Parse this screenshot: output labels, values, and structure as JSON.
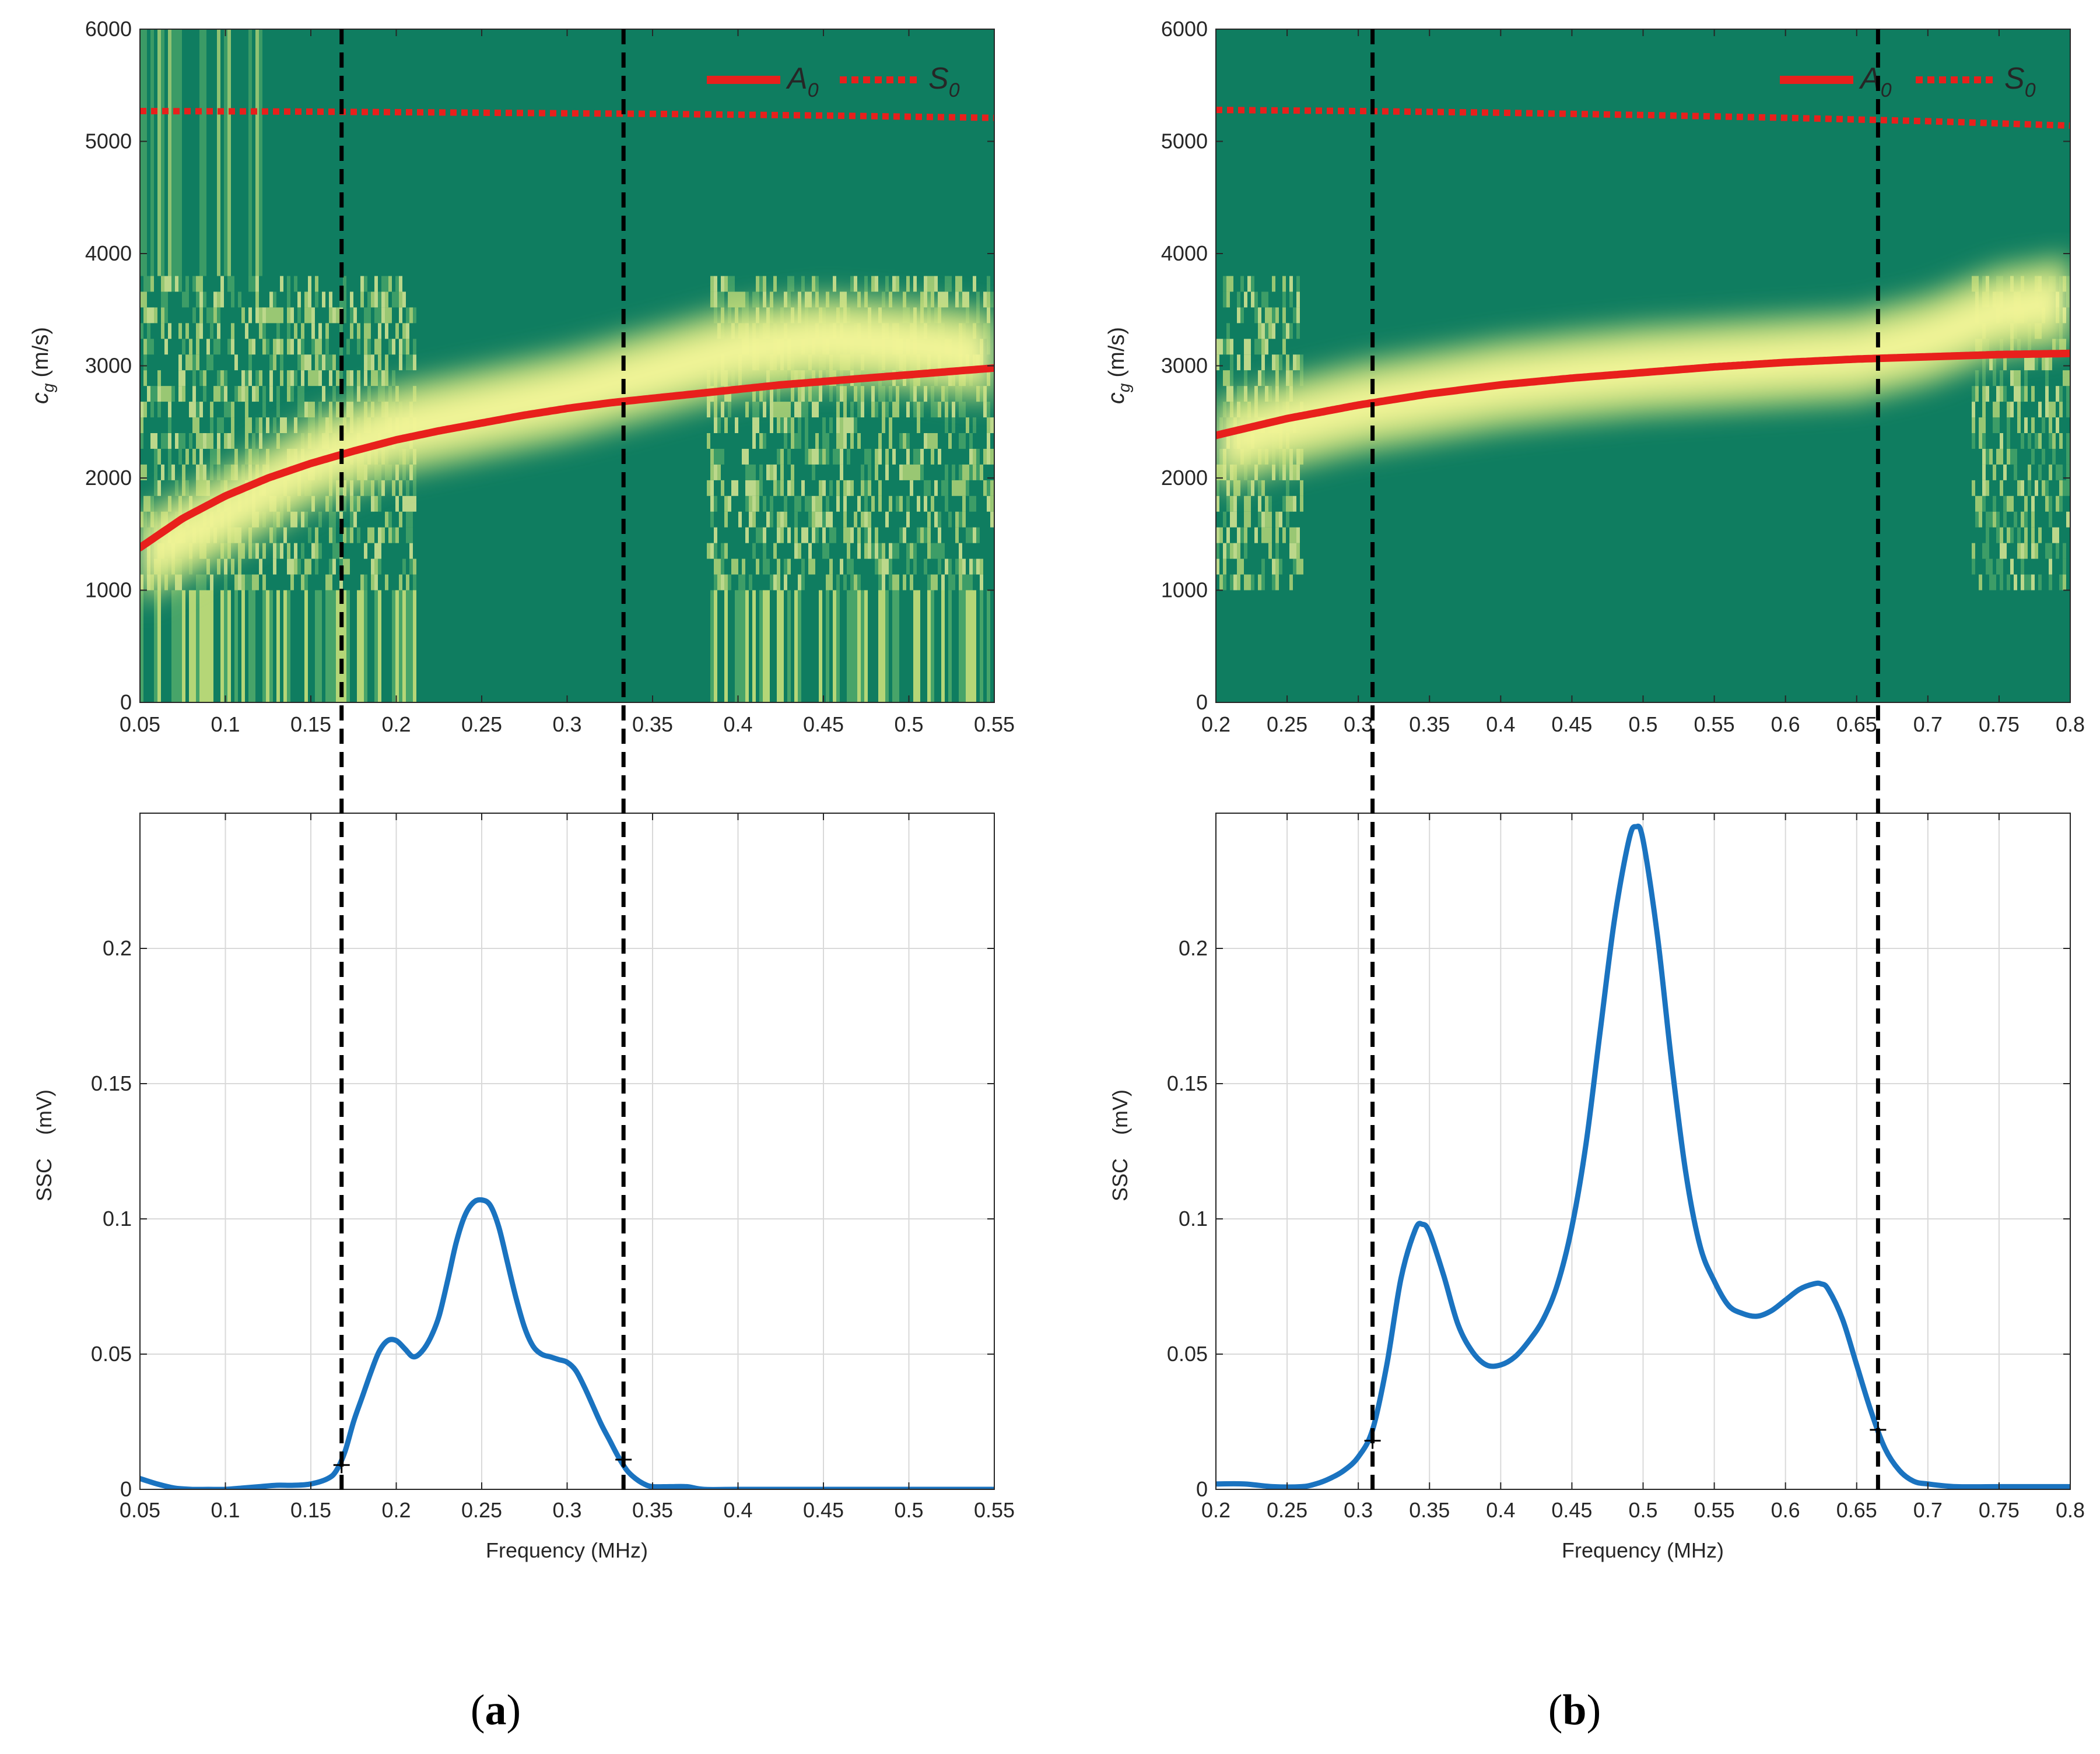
{
  "colors": {
    "heat_dark": "#0f7d60",
    "heat_mid": "#4ea86a",
    "heat_light": "#c8e07a",
    "heat_peak": "#f7f79a",
    "a0_line": "#e8201c",
    "spectrum_line": "#1a73c0",
    "guide_line": "#000000",
    "grid": "#d9d9d9"
  },
  "panels": [
    {
      "id": "a",
      "caption": "a",
      "legend": {
        "a0": "A",
        "a0_sub": "0",
        "s0": "S",
        "s0_sub": "0"
      },
      "cutoffs": [
        0.168,
        0.333
      ],
      "top": {
        "xlim": [
          0.05,
          0.55
        ],
        "ylim": [
          0,
          6000
        ],
        "xticks": [
          "0.05",
          "0.1",
          "0.15",
          "0.2",
          "0.25",
          "0.3",
          "0.35",
          "0.4",
          "0.45",
          "0.5",
          "0.55"
        ],
        "yticks": [
          "0",
          "1000",
          "2000",
          "3000",
          "4000",
          "5000",
          "6000"
        ],
        "ylabel": "c",
        "ylabel_sub": "g",
        "ylabel_units": "(m/s)"
      },
      "bottom": {
        "xlim": [
          0.05,
          0.55
        ],
        "ylim": [
          0,
          0.25
        ],
        "xticks": [
          "0.05",
          "0.1",
          "0.15",
          "0.2",
          "0.25",
          "0.3",
          "0.35",
          "0.4",
          "0.45",
          "0.5",
          "0.55"
        ],
        "yticks": [
          "0",
          "0.05",
          "0.1",
          "0.15",
          "0.2"
        ],
        "xlabel": "Frequency (MHz)",
        "ylabel": "SSC    (mV)"
      }
    },
    {
      "id": "b",
      "caption": "b",
      "legend": {
        "a0": "A",
        "a0_sub": "0",
        "s0": "S",
        "s0_sub": "0"
      },
      "cutoffs": [
        0.31,
        0.665
      ],
      "top": {
        "xlim": [
          0.2,
          0.8
        ],
        "ylim": [
          0,
          6000
        ],
        "xticks": [
          "0.2",
          "0.25",
          "0.3",
          "0.35",
          "0.4",
          "0.45",
          "0.5",
          "0.55",
          "0.6",
          "0.65",
          "0.7",
          "0.75",
          "0.8"
        ],
        "yticks": [
          "0",
          "1000",
          "2000",
          "3000",
          "4000",
          "5000",
          "6000"
        ],
        "ylabel": "c",
        "ylabel_sub": "g",
        "ylabel_units": "(m/s)"
      },
      "bottom": {
        "xlim": [
          0.2,
          0.8
        ],
        "ylim": [
          0,
          0.25
        ],
        "xticks": [
          "0.2",
          "0.25",
          "0.3",
          "0.35",
          "0.4",
          "0.45",
          "0.5",
          "0.55",
          "0.6",
          "0.65",
          "0.7",
          "0.75",
          "0.8"
        ],
        "yticks": [
          "0",
          "0.05",
          "0.1",
          "0.15",
          "0.2"
        ],
        "xlabel": "Frequency (MHz)",
        "ylabel": "SSC    (mV)"
      }
    }
  ],
  "chart_data": [
    {
      "type": "heatmap",
      "panel": "a-top",
      "title": "",
      "xlabel": "",
      "ylabel": "c_g (m/s)",
      "xlim": [
        0.05,
        0.55
      ],
      "ylim": [
        0,
        6000
      ],
      "grid": false,
      "legend": "top-right",
      "series": [
        {
          "name": "A0",
          "style": "solid",
          "x": [
            0.05,
            0.075,
            0.1,
            0.125,
            0.15,
            0.175,
            0.2,
            0.225,
            0.25,
            0.275,
            0.3,
            0.325,
            0.35,
            0.375,
            0.4,
            0.425,
            0.45,
            0.475,
            0.5,
            0.525,
            0.55
          ],
          "y": [
            1380,
            1640,
            1840,
            2000,
            2130,
            2240,
            2340,
            2420,
            2490,
            2560,
            2620,
            2670,
            2710,
            2750,
            2790,
            2830,
            2860,
            2890,
            2920,
            2950,
            2980
          ]
        },
        {
          "name": "S0",
          "style": "dotted",
          "x": [
            0.05,
            0.15,
            0.25,
            0.35,
            0.45,
            0.55
          ],
          "y": [
            5270,
            5265,
            5255,
            5245,
            5230,
            5210
          ]
        }
      ],
      "energy_band": {
        "x": [
          0.05,
          0.1,
          0.15,
          0.2,
          0.25,
          0.3,
          0.35,
          0.4,
          0.45,
          0.5,
          0.55
        ],
        "center": [
          1300,
          1700,
          2150,
          2450,
          2600,
          2750,
          2950,
          3150,
          3250,
          3200,
          3100
        ]
      }
    },
    {
      "type": "line",
      "panel": "a-bottom",
      "title": "",
      "xlabel": "Frequency (MHz)",
      "ylabel": "SSC (mV)",
      "xlim": [
        0.05,
        0.55
      ],
      "ylim": [
        0,
        0.25
      ],
      "grid": true,
      "series": [
        {
          "name": "SSC",
          "x": [
            0.05,
            0.06,
            0.07,
            0.08,
            0.09,
            0.1,
            0.11,
            0.12,
            0.13,
            0.14,
            0.15,
            0.16,
            0.165,
            0.17,
            0.175,
            0.18,
            0.185,
            0.19,
            0.195,
            0.2,
            0.205,
            0.21,
            0.215,
            0.22,
            0.225,
            0.23,
            0.235,
            0.24,
            0.245,
            0.25,
            0.255,
            0.26,
            0.265,
            0.27,
            0.275,
            0.28,
            0.285,
            0.29,
            0.295,
            0.3,
            0.305,
            0.31,
            0.315,
            0.32,
            0.325,
            0.33,
            0.335,
            0.34,
            0.345,
            0.35,
            0.36,
            0.37,
            0.38,
            0.4,
            0.45,
            0.5,
            0.55
          ],
          "y": [
            0.004,
            0.002,
            0.0005,
            0.0,
            0.0,
            0.0,
            0.0005,
            0.001,
            0.0015,
            0.0015,
            0.002,
            0.004,
            0.007,
            0.014,
            0.025,
            0.034,
            0.043,
            0.051,
            0.055,
            0.055,
            0.052,
            0.049,
            0.051,
            0.056,
            0.064,
            0.077,
            0.091,
            0.101,
            0.106,
            0.107,
            0.105,
            0.097,
            0.084,
            0.071,
            0.06,
            0.053,
            0.05,
            0.049,
            0.048,
            0.047,
            0.044,
            0.038,
            0.031,
            0.024,
            0.018,
            0.012,
            0.007,
            0.004,
            0.002,
            0.001,
            0.001,
            0.001,
            0.0,
            0.0,
            0.0,
            0.0,
            0.0
          ]
        }
      ],
      "markers": [
        {
          "x": 0.168,
          "y": 0.009
        },
        {
          "x": 0.333,
          "y": 0.011
        }
      ]
    },
    {
      "type": "heatmap",
      "panel": "b-top",
      "title": "",
      "xlabel": "",
      "ylabel": "c_g (m/s)",
      "xlim": [
        0.2,
        0.8
      ],
      "ylim": [
        0,
        6000
      ],
      "grid": false,
      "legend": "top-right",
      "series": [
        {
          "name": "A0",
          "style": "solid",
          "x": [
            0.2,
            0.25,
            0.3,
            0.35,
            0.4,
            0.45,
            0.5,
            0.55,
            0.6,
            0.65,
            0.7,
            0.75,
            0.8
          ],
          "y": [
            2380,
            2530,
            2650,
            2750,
            2830,
            2890,
            2940,
            2990,
            3030,
            3060,
            3080,
            3100,
            3110
          ]
        },
        {
          "name": "S0",
          "style": "dotted",
          "x": [
            0.2,
            0.3,
            0.4,
            0.5,
            0.6,
            0.7,
            0.8
          ],
          "y": [
            5280,
            5270,
            5255,
            5235,
            5210,
            5180,
            5140
          ]
        }
      ],
      "energy_band": {
        "x": [
          0.2,
          0.25,
          0.3,
          0.35,
          0.4,
          0.45,
          0.5,
          0.55,
          0.6,
          0.65,
          0.7,
          0.75,
          0.8
        ],
        "center": [
          2300,
          2500,
          2650,
          2750,
          2850,
          2920,
          2980,
          3020,
          3060,
          3100,
          3250,
          3500,
          3600
        ]
      }
    },
    {
      "type": "line",
      "panel": "b-bottom",
      "title": "",
      "xlabel": "Frequency (MHz)",
      "ylabel": "SSC (mV)",
      "xlim": [
        0.2,
        0.8
      ],
      "ylim": [
        0,
        0.25
      ],
      "grid": true,
      "series": [
        {
          "name": "SSC",
          "x": [
            0.2,
            0.22,
            0.24,
            0.26,
            0.27,
            0.28,
            0.29,
            0.3,
            0.31,
            0.32,
            0.33,
            0.34,
            0.345,
            0.35,
            0.36,
            0.37,
            0.38,
            0.39,
            0.4,
            0.41,
            0.42,
            0.43,
            0.44,
            0.45,
            0.46,
            0.47,
            0.48,
            0.49,
            0.495,
            0.5,
            0.51,
            0.52,
            0.53,
            0.54,
            0.55,
            0.56,
            0.57,
            0.58,
            0.59,
            0.6,
            0.61,
            0.62,
            0.625,
            0.63,
            0.64,
            0.65,
            0.66,
            0.67,
            0.68,
            0.69,
            0.7,
            0.72,
            0.75,
            0.8
          ],
          "y": [
            0.002,
            0.002,
            0.001,
            0.001,
            0.002,
            0.004,
            0.007,
            0.012,
            0.022,
            0.046,
            0.078,
            0.096,
            0.098,
            0.095,
            0.079,
            0.061,
            0.051,
            0.046,
            0.046,
            0.049,
            0.055,
            0.063,
            0.076,
            0.097,
            0.128,
            0.17,
            0.211,
            0.24,
            0.245,
            0.24,
            0.205,
            0.158,
            0.117,
            0.09,
            0.077,
            0.068,
            0.065,
            0.064,
            0.066,
            0.07,
            0.074,
            0.076,
            0.076,
            0.074,
            0.063,
            0.046,
            0.029,
            0.015,
            0.007,
            0.003,
            0.002,
            0.001,
            0.001,
            0.001
          ]
        }
      ],
      "markers": [
        {
          "x": 0.31,
          "y": 0.018
        },
        {
          "x": 0.665,
          "y": 0.022
        }
      ]
    }
  ]
}
